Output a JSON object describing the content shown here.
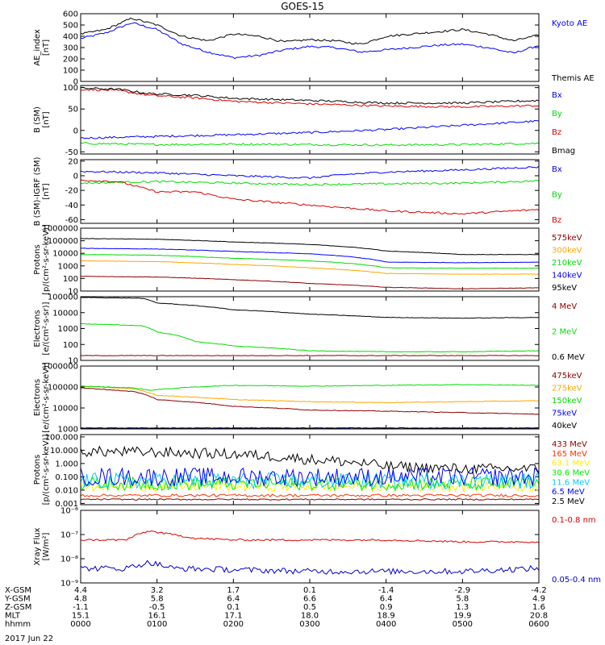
{
  "figure": {
    "title": "GOES-15",
    "date": "2017 Jun 22"
  },
  "chart_data": [
    {
      "type": "line",
      "id": "ae",
      "ylabel": "AE_index\n[nT]",
      "ylim": [
        0,
        600
      ],
      "yscale": "linear",
      "yticks": [
        0,
        100,
        200,
        300,
        400,
        500,
        600
      ],
      "series": [
        {
          "name": "Kyoto AE",
          "color": "#0000ff",
          "x": [
            0,
            0.33,
            0.67,
            1.0,
            1.33,
            1.67,
            2.0,
            2.33,
            2.67,
            3.0,
            3.33,
            3.67,
            4.0,
            4.33,
            4.67,
            5.0,
            5.33,
            5.67,
            6.0
          ],
          "y": [
            380,
            430,
            520,
            460,
            330,
            260,
            210,
            230,
            280,
            310,
            300,
            260,
            280,
            300,
            320,
            330,
            300,
            250,
            320
          ]
        },
        {
          "name": "Themis AE",
          "color": "#000000",
          "x": [
            0,
            0.33,
            0.67,
            1.0,
            1.33,
            1.67,
            2.0,
            2.33,
            2.67,
            3.0,
            3.33,
            3.67,
            4.0,
            4.33,
            4.67,
            5.0,
            5.33,
            5.67,
            6.0
          ],
          "y": [
            420,
            460,
            560,
            500,
            400,
            360,
            420,
            400,
            350,
            370,
            360,
            330,
            400,
            420,
            440,
            460,
            420,
            360,
            410
          ]
        }
      ]
    },
    {
      "type": "line",
      "id": "bsm",
      "ylabel": "B (SM)\n[nT]",
      "ylim": [
        -55,
        105
      ],
      "yscale": "linear",
      "yticks": [
        -50,
        0,
        50,
        100
      ],
      "series": [
        {
          "name": "Bx",
          "color": "#0000ff",
          "x": [
            0,
            1,
            2,
            3,
            4,
            5,
            6
          ],
          "y": [
            -18,
            -14,
            -10,
            -5,
            2,
            12,
            22
          ]
        },
        {
          "name": "By",
          "color": "#00dd00",
          "x": [
            0,
            1,
            2,
            3,
            4,
            5,
            6
          ],
          "y": [
            -30,
            -33,
            -32,
            -33,
            -34,
            -33,
            -30
          ]
        },
        {
          "name": "Bz",
          "color": "#dd0000",
          "x": [
            0,
            0.5,
            0.9,
            1.5,
            2.0,
            3.0,
            4.0,
            5.0,
            6.0
          ],
          "y": [
            96,
            93,
            82,
            76,
            68,
            62,
            57,
            55,
            58
          ]
        },
        {
          "name": "Bmag",
          "color": "#000000",
          "x": [
            0,
            0.5,
            0.9,
            1.5,
            2.0,
            3.0,
            4.0,
            5.0,
            6.0
          ],
          "y": [
            99,
            96,
            86,
            82,
            75,
            70,
            64,
            64,
            70
          ]
        }
      ]
    },
    {
      "type": "line",
      "id": "bigrf",
      "ylabel": "B (SM)-IGRF (SM)\n[nT]",
      "ylim": [
        -65,
        22
      ],
      "yscale": "linear",
      "yticks": [
        -60,
        -40,
        -20,
        0,
        20
      ],
      "series": [
        {
          "name": "Bx",
          "color": "#0000ff",
          "x": [
            0,
            1,
            2,
            3,
            3.5,
            4,
            5,
            6
          ],
          "y": [
            6,
            4,
            0,
            -3,
            2,
            5,
            8,
            12
          ]
        },
        {
          "name": "By",
          "color": "#00dd00",
          "x": [
            0,
            1,
            2,
            3,
            4,
            5,
            6
          ],
          "y": [
            -10,
            -8,
            -10,
            -12,
            -11,
            -10,
            -7
          ]
        },
        {
          "name": "Bz",
          "color": "#dd0000",
          "x": [
            0,
            0.5,
            1.0,
            1.5,
            2.0,
            3.0,
            4.0,
            5.0,
            6.0
          ],
          "y": [
            -6,
            -8,
            -22,
            -22,
            -32,
            -40,
            -48,
            -52,
            -46
          ]
        }
      ]
    },
    {
      "type": "line",
      "id": "protons-kev",
      "ylabel": "Protons\n[p/(cm²-s-sr-keV)]",
      "ylim": [
        10,
        1000000
      ],
      "yscale": "log",
      "yticks": [
        10,
        100,
        1000,
        10000,
        100000,
        1000000
      ],
      "series": [
        {
          "name": "575keV",
          "color": "#8b0000",
          "x": [
            0,
            1,
            2,
            3,
            4,
            5,
            6
          ],
          "y": [
            150,
            130,
            80,
            40,
            20,
            15,
            18
          ]
        },
        {
          "name": "300keV",
          "color": "#ffa500",
          "x": [
            0,
            1,
            2,
            3,
            4,
            5,
            6
          ],
          "y": [
            2500,
            2200,
            1300,
            700,
            250,
            220,
            220
          ]
        },
        {
          "name": "210keV",
          "color": "#00dd00",
          "x": [
            0,
            1,
            2,
            3,
            4,
            5,
            6
          ],
          "y": [
            8000,
            7000,
            4000,
            2500,
            700,
            650,
            650
          ]
        },
        {
          "name": "140keV",
          "color": "#0000ff",
          "x": [
            0,
            1,
            2,
            3,
            4,
            5,
            6
          ],
          "y": [
            25000,
            22000,
            14000,
            9000,
            2000,
            1800,
            2000
          ]
        },
        {
          "name": "95keV",
          "color": "#000000",
          "x": [
            0,
            1,
            2,
            3,
            4,
            5,
            6
          ],
          "y": [
            150000,
            130000,
            80000,
            50000,
            15000,
            8000,
            8000
          ]
        }
      ]
    },
    {
      "type": "line",
      "id": "electrons-mev",
      "ylabel": "Electrons\n[e/(cm²-s-sr)]",
      "ylim": [
        10,
        100000
      ],
      "yscale": "log",
      "yticks": [
        10,
        100,
        1000,
        10000,
        100000
      ],
      "series": [
        {
          "name": "4 MeV",
          "color": "#8b0000",
          "x": [
            0,
            1,
            2,
            3,
            4,
            5,
            6
          ],
          "y": [
            20,
            20,
            20,
            20,
            20,
            20,
            20
          ]
        },
        {
          "name": "2 MeV",
          "color": "#00dd00",
          "x": [
            0,
            0.8,
            1.0,
            1.5,
            2.0,
            3.0,
            4.0,
            5.0,
            6.0
          ],
          "y": [
            2000,
            1500,
            600,
            150,
            80,
            40,
            35,
            35,
            40
          ]
        },
        {
          "name": "0.6 MeV",
          "color": "#000000",
          "x": [
            0,
            0.8,
            1.0,
            2.0,
            3.0,
            4.0,
            5.0,
            6.0
          ],
          "y": [
            90000,
            80000,
            40000,
            15000,
            8000,
            5000,
            4500,
            5000
          ]
        }
      ]
    },
    {
      "type": "line",
      "id": "electrons-kev",
      "ylabel": "Electrons\n[e/(cm²-s-sr-keV)]",
      "ylim": [
        1000,
        1000000
      ],
      "yscale": "log",
      "yticks": [
        1000,
        10000,
        100000,
        1000000
      ],
      "series": [
        {
          "name": "475keV",
          "color": "#8b0000",
          "x": [
            0,
            0.7,
            1.0,
            2.0,
            3.0,
            4.0,
            5.0,
            6.0
          ],
          "y": [
            90000,
            60000,
            25000,
            12000,
            8000,
            7000,
            6000,
            5000
          ]
        },
        {
          "name": "275keV",
          "color": "#ffa500",
          "x": [
            0,
            0.7,
            1.0,
            2.0,
            3.0,
            4.0,
            5.0,
            6.0
          ],
          "y": [
            110000,
            80000,
            40000,
            25000,
            20000,
            18000,
            20000,
            22000
          ]
        },
        {
          "name": "150keV",
          "color": "#00dd00",
          "x": [
            0,
            0.7,
            0.9,
            1.5,
            2.0,
            3.0,
            4.0,
            5.0,
            6.0
          ],
          "y": [
            110000,
            90000,
            70000,
            100000,
            120000,
            110000,
            120000,
            130000,
            120000
          ]
        },
        {
          "name": "75keV",
          "color": "#0000ff",
          "x": [
            0,
            6
          ],
          "y": [
            1100,
            1100
          ]
        },
        {
          "name": "40keV",
          "color": "#000000",
          "x": [
            0,
            6
          ],
          "y": [
            1100,
            1100
          ]
        }
      ]
    },
    {
      "type": "line",
      "id": "protons-mev",
      "ylabel": "Protons\n[p/(cm²-s-sr-keV)]",
      "ylim": [
        0.0008,
        150
      ],
      "yscale": "log",
      "yticks": [
        0.001,
        0.01,
        0.1,
        1,
        10,
        100
      ],
      "ytick_labels": [
        "0.001",
        "0.010",
        "0.100",
        "1.000",
        "10.000",
        "100.000"
      ],
      "series": [
        {
          "name": "433 MeV",
          "color": "#8b0000",
          "noise": 0.05,
          "x": [
            0,
            6
          ],
          "y": [
            0.002,
            0.002
          ]
        },
        {
          "name": "165 MeV",
          "color": "#ff3300",
          "noise": 0.1,
          "x": [
            0,
            6
          ],
          "y": [
            0.004,
            0.004
          ]
        },
        {
          "name": "63.1 MeV",
          "color": "#ffee00",
          "noise": 0.4,
          "x": [
            0,
            6
          ],
          "y": [
            0.02,
            0.02
          ]
        },
        {
          "name": "30.6 MeV",
          "color": "#00ee00",
          "noise": 0.5,
          "x": [
            0,
            6
          ],
          "y": [
            0.03,
            0.03
          ]
        },
        {
          "name": "11.6 MeV",
          "color": "#00ccff",
          "noise": 0.6,
          "x": [
            0,
            6
          ],
          "y": [
            0.05,
            0.05
          ]
        },
        {
          "name": "6.5 MeV",
          "color": "#0000ff",
          "noise": 0.7,
          "x": [
            0,
            6
          ],
          "y": [
            0.1,
            0.1
          ]
        },
        {
          "name": "2.5 MeV",
          "color": "#000000",
          "noise": 0.4,
          "x": [
            0,
            1,
            2,
            3,
            4,
            5,
            6
          ],
          "y": [
            8,
            7,
            5,
            2,
            0.6,
            0.4,
            0.4
          ]
        }
      ]
    },
    {
      "type": "line",
      "id": "xray",
      "ylabel": "Xray Flux\n[W/m²]",
      "ylim": [
        1e-09,
        1e-06
      ],
      "yscale": "log",
      "yticks": [
        1e-09,
        1e-08,
        1e-07,
        1e-06
      ],
      "ytick_labels": [
        "10⁻⁹",
        "10⁻⁸",
        "10⁻⁷",
        "10⁻⁶"
      ],
      "series": [
        {
          "name": "0.1-0.8 nm",
          "color": "#dd0000",
          "noise": 0.04,
          "x": [
            0,
            0.6,
            0.9,
            1.1,
            1.5,
            2.0,
            3.0,
            4.0,
            5.0,
            6.0
          ],
          "y": [
            6e-08,
            6e-08,
            1.4e-07,
            1.1e-07,
            7e-08,
            6e-08,
            6e-08,
            6e-08,
            5e-08,
            5e-08
          ]
        },
        {
          "name": "0.05-0.4 nm",
          "color": "#0000cc",
          "noise": 0.12,
          "x": [
            0,
            0.6,
            0.9,
            1.2,
            2.0,
            3.0,
            4.0,
            5.0,
            6.0
          ],
          "y": [
            4e-09,
            4e-09,
            7e-09,
            4e-09,
            3.5e-09,
            3e-09,
            3e-09,
            3e-09,
            4e-09
          ]
        }
      ]
    }
  ],
  "orbit_table": {
    "rows": [
      {
        "label": "X-GSM",
        "values": [
          "4.4",
          "3.2",
          "1.7",
          "0.1",
          "-1.4",
          "-2.9",
          "-4.2"
        ]
      },
      {
        "label": "Y-GSM",
        "values": [
          "4.8",
          "5.8",
          "6.4",
          "6.6",
          "6.4",
          "5.8",
          "4.9"
        ]
      },
      {
        "label": "Z-GSM",
        "values": [
          "-1.1",
          "-0.5",
          "0.1",
          "0.5",
          "0.9",
          "1.3",
          "1.6"
        ]
      },
      {
        "label": "MLT",
        "values": [
          "15.1",
          "16.1",
          "17.1",
          "18.0",
          "18.9",
          "19.9",
          "20.8"
        ]
      },
      {
        "label": "hhmm",
        "values": [
          "0000",
          "0100",
          "0200",
          "0300",
          "0400",
          "0500",
          "0600"
        ]
      }
    ]
  }
}
